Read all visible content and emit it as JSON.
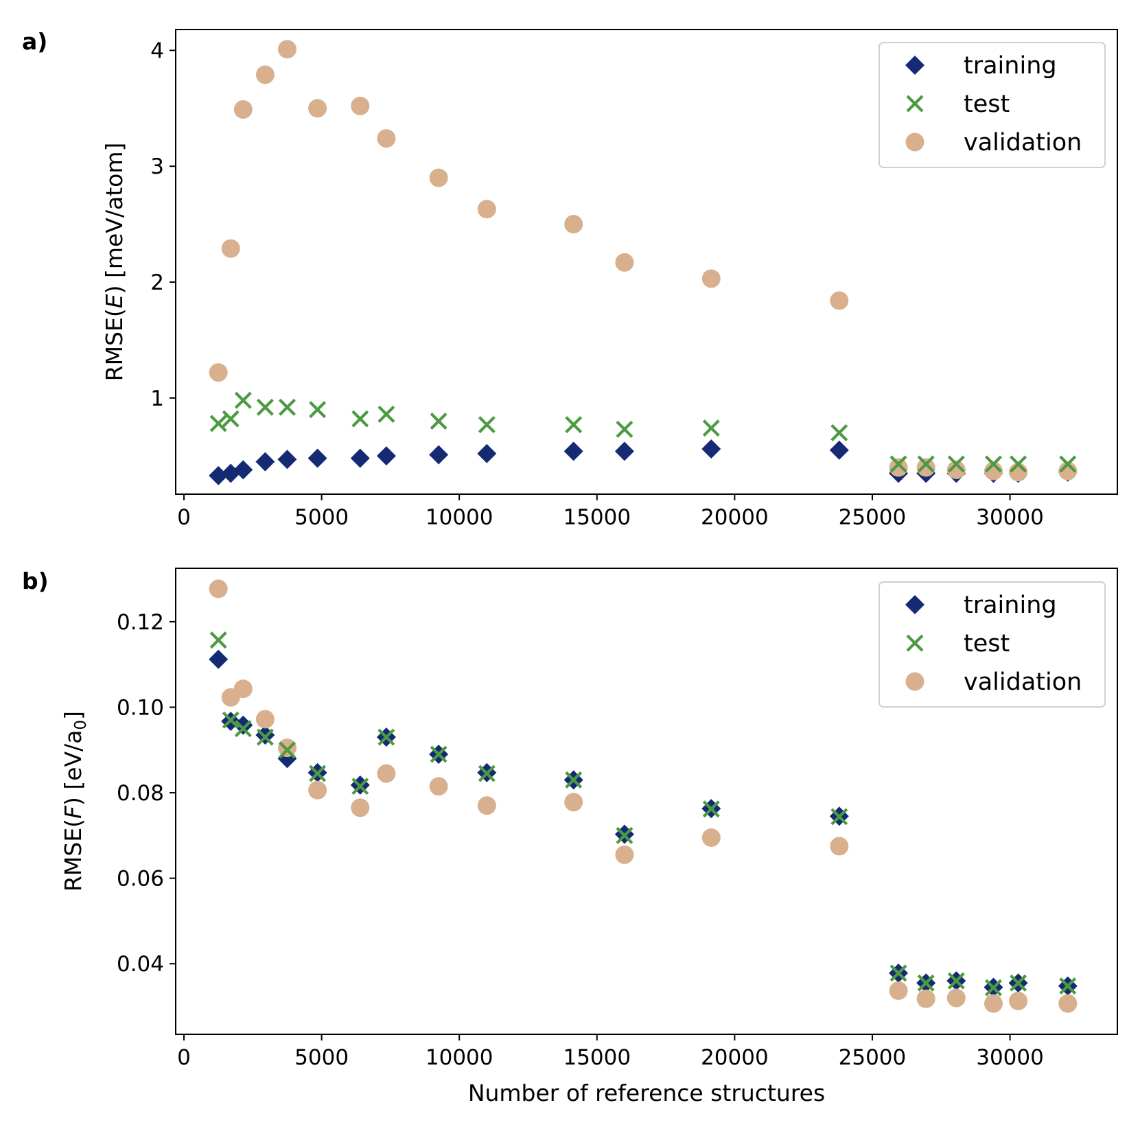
{
  "colors": {
    "training": "#142a73",
    "test": "#4c9a42",
    "validation": "#d8b08e"
  },
  "chart_data": [
    {
      "type": "scatter",
      "panel_label": "a)",
      "xlabel": "",
      "ylabel_parts": [
        "RMSE(",
        "E",
        ") [meV/atom]"
      ],
      "xlim": [
        -300,
        33900
      ],
      "ylim": [
        0.17,
        4.18
      ],
      "xticks": [
        0,
        5000,
        10000,
        15000,
        20000,
        25000,
        30000
      ],
      "xtick_labels": [
        "0",
        "5000",
        "10000",
        "15000",
        "20000",
        "25000",
        "30000"
      ],
      "yticks": [
        1,
        2,
        3,
        4
      ],
      "ytick_labels": [
        "1",
        "2",
        "3",
        "4"
      ],
      "legend_position": "top-right",
      "x": [
        1250,
        1700,
        2150,
        2950,
        3750,
        4850,
        6400,
        7350,
        9250,
        11000,
        14150,
        16000,
        19150,
        23800,
        25950,
        26950,
        28050,
        29400,
        30300,
        32100
      ],
      "series": [
        {
          "name": "training",
          "marker": "diamond",
          "values": [
            0.33,
            0.35,
            0.38,
            0.45,
            0.47,
            0.48,
            0.48,
            0.5,
            0.51,
            0.52,
            0.54,
            0.54,
            0.56,
            0.55,
            0.35,
            0.35,
            0.35,
            0.35,
            0.35,
            0.36
          ]
        },
        {
          "name": "test",
          "marker": "x",
          "values": [
            0.78,
            0.82,
            0.98,
            0.92,
            0.92,
            0.9,
            0.82,
            0.86,
            0.8,
            0.77,
            0.77,
            0.73,
            0.74,
            0.7,
            0.43,
            0.43,
            0.43,
            0.43,
            0.43,
            0.43
          ]
        },
        {
          "name": "validation",
          "marker": "circle",
          "values": [
            1.22,
            2.29,
            3.49,
            3.79,
            4.01,
            3.5,
            3.52,
            3.24,
            2.9,
            2.63,
            2.5,
            2.17,
            2.03,
            1.84,
            0.4,
            0.4,
            0.38,
            0.37,
            0.36,
            0.37
          ]
        }
      ]
    },
    {
      "type": "scatter",
      "panel_label": "b)",
      "xlabel": "Number of reference structures",
      "ylabel_parts": [
        "RMSE(",
        "F",
        ") [eV/a",
        "0",
        "]"
      ],
      "xlim": [
        -300,
        33900
      ],
      "ylim": [
        0.0235,
        0.1325
      ],
      "xticks": [
        0,
        5000,
        10000,
        15000,
        20000,
        25000,
        30000
      ],
      "xtick_labels": [
        "0",
        "5000",
        "10000",
        "15000",
        "20000",
        "25000",
        "30000"
      ],
      "yticks": [
        0.04,
        0.06,
        0.08,
        0.1,
        0.12
      ],
      "ytick_labels": [
        "0.04",
        "0.06",
        "0.08",
        "0.10",
        "0.12"
      ],
      "legend_position": "top-right",
      "x": [
        1250,
        1700,
        2150,
        2950,
        3750,
        4850,
        6400,
        7350,
        9250,
        11000,
        14150,
        16000,
        19150,
        23800,
        25950,
        26950,
        28050,
        29400,
        30300,
        32100
      ],
      "series": [
        {
          "name": "training",
          "marker": "diamond",
          "values": [
            0.1112,
            0.0967,
            0.0958,
            0.0935,
            0.088,
            0.0847,
            0.0818,
            0.093,
            0.089,
            0.0847,
            0.083,
            0.0703,
            0.0763,
            0.0745,
            0.0378,
            0.0355,
            0.036,
            0.0345,
            0.0355,
            0.0348
          ]
        },
        {
          "name": "test",
          "marker": "x",
          "values": [
            0.1157,
            0.097,
            0.095,
            0.093,
            0.09,
            0.0845,
            0.0815,
            0.093,
            0.089,
            0.0845,
            0.083,
            0.07,
            0.0762,
            0.0744,
            0.0378,
            0.0355,
            0.036,
            0.0344,
            0.0355,
            0.0348
          ]
        },
        {
          "name": "validation",
          "marker": "circle",
          "values": [
            0.1277,
            0.1023,
            0.1043,
            0.0972,
            0.0905,
            0.0806,
            0.0765,
            0.0845,
            0.0815,
            0.077,
            0.0778,
            0.0655,
            0.0695,
            0.0675,
            0.0337,
            0.0318,
            0.032,
            0.0307,
            0.0313,
            0.0307
          ]
        }
      ]
    }
  ]
}
